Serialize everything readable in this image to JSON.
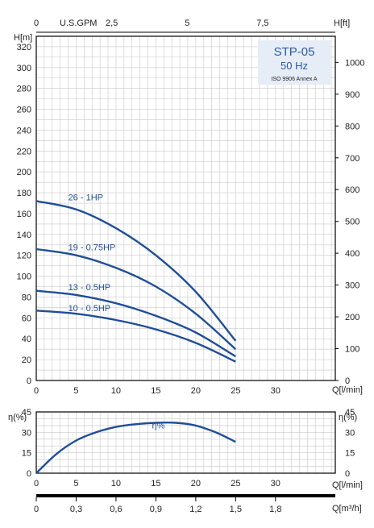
{
  "info_box": {
    "model": "STP-05",
    "frequency": "50 Hz",
    "standard": "ISO 9906 Annex A"
  },
  "colors": {
    "curve": "#1f4e96",
    "grid": "#c9c9c9",
    "axis": "#000000",
    "box_bg": "#e6edf7",
    "box_text": "#2a5aa8"
  },
  "chart_data": [
    {
      "type": "line",
      "name": "head-curves",
      "xlabel": "Q[l/min]",
      "ylabel_left": "H[m]",
      "ylabel_right": "H[ft]",
      "top_axis_label": "U.S.GPM",
      "xlim": [
        0,
        37.5
      ],
      "ylim": [
        0,
        330
      ],
      "right_ylim": [
        0,
        1082
      ],
      "grid": true,
      "x_ticks": [
        "0",
        "5",
        "10",
        "15",
        "20",
        "25",
        "30"
      ],
      "y_ticks": [
        "0",
        "20",
        "40",
        "60",
        "80",
        "100",
        "120",
        "140",
        "160",
        "180",
        "200",
        "220",
        "240",
        "260",
        "280",
        "300",
        "320"
      ],
      "right_y_ticks": [
        "0",
        "100",
        "200",
        "300",
        "400",
        "500",
        "600",
        "700",
        "800",
        "900",
        "1000"
      ],
      "top_ticks": [
        {
          "gpm": 0,
          "label": "0"
        },
        {
          "gpm": 2.5,
          "label": "2,5"
        },
        {
          "gpm": 5,
          "label": "5"
        },
        {
          "gpm": 7.5,
          "label": "7,5"
        }
      ],
      "series": [
        {
          "name": "26 - 1HP",
          "label_at": [
            4,
            168
          ],
          "x": [
            0,
            5,
            10,
            15,
            20,
            25
          ],
          "y": [
            172,
            164,
            146,
            120,
            85,
            38
          ]
        },
        {
          "name": "19 - 0.75HP",
          "label_at": [
            4,
            120
          ],
          "x": [
            0,
            5,
            10,
            15,
            20,
            25
          ],
          "y": [
            126,
            120,
            108,
            90,
            64,
            30
          ]
        },
        {
          "name": "13 - 0.5HP",
          "label_at": [
            4,
            82
          ],
          "x": [
            0,
            5,
            10,
            15,
            20,
            25
          ],
          "y": [
            86,
            82,
            74,
            62,
            46,
            23
          ]
        },
        {
          "name": "10 - 0.5HP",
          "label_at": [
            4,
            62
          ],
          "x": [
            0,
            5,
            10,
            15,
            20,
            25
          ],
          "y": [
            67,
            64,
            58,
            49,
            36,
            18
          ]
        }
      ]
    },
    {
      "type": "line",
      "name": "efficiency-curve",
      "xlabel": "Q[l/min]",
      "ylabel_left": "η(%)",
      "ylabel_right": "η(%)",
      "xlim": [
        0,
        37.5
      ],
      "ylim": [
        0,
        45
      ],
      "grid": true,
      "x_ticks": [
        "0",
        "5",
        "10",
        "15",
        "20",
        "25",
        "30"
      ],
      "y_ticks": [
        "0",
        "15",
        "30",
        "45"
      ],
      "series": [
        {
          "name": "η%",
          "label_at": [
            14.5,
            33
          ],
          "x": [
            0,
            2.5,
            5,
            7.5,
            10,
            12.5,
            15,
            17.5,
            20,
            22.5,
            25
          ],
          "y": [
            0,
            14,
            24,
            30,
            34,
            36,
            37,
            37,
            35,
            30,
            23
          ]
        }
      ]
    },
    {
      "type": "axis",
      "name": "flow-m3h-axis",
      "xlabel": "Q[m³/h]",
      "ticks": [
        {
          "value": 0,
          "label": "0"
        },
        {
          "value": 0.3,
          "label": "0,3"
        },
        {
          "value": 0.6,
          "label": "0,6"
        },
        {
          "value": 0.9,
          "label": "0,9"
        },
        {
          "value": 1.2,
          "label": "1,2"
        },
        {
          "value": 1.5,
          "label": "1,5"
        },
        {
          "value": 1.8,
          "label": "1,8"
        }
      ]
    }
  ]
}
